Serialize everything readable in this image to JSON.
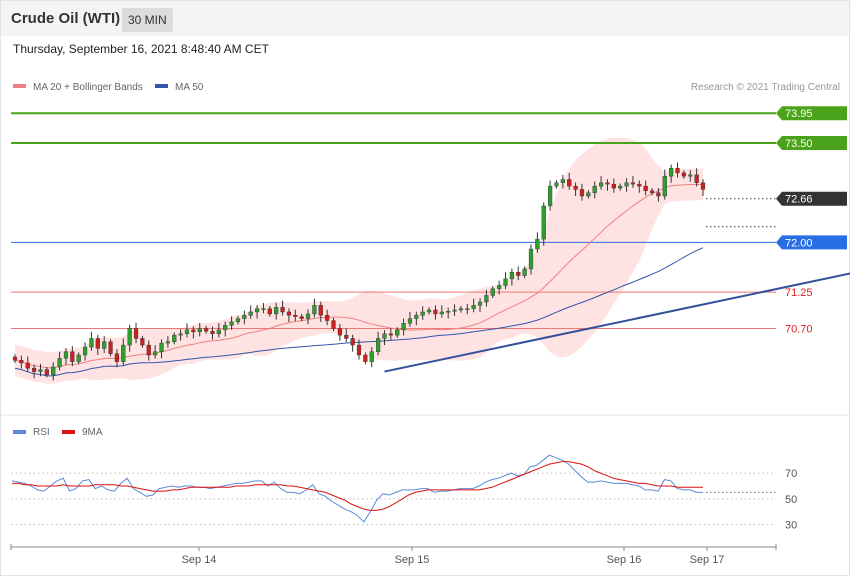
{
  "header": {
    "title": "Crude Oil (WTI)",
    "interval": "30 MIN"
  },
  "timestamp": "Thursday, September 16, 2021 8:48:40 AM CET",
  "copyright": "Research © 2021 Trading Central",
  "colors": {
    "up": "#2e9e2e",
    "down": "#cc1f1f",
    "ma20": "#f08080",
    "bands": "#ffdede",
    "ma50": "#3355aa",
    "resistance": "#4aa31a",
    "current": "#333333",
    "pivot": "#2a6ee6",
    "support": "#ee7777",
    "trend": "#33509a",
    "rsi": "#5b8bd8",
    "rsi_ma": "#dd1111",
    "grid": "#bbbbbb"
  },
  "chart_data": [
    {
      "type": "candlestick",
      "title": "Crude Oil (WTI)",
      "legend": [
        {
          "name": "MA 20 + Bollinger Bands",
          "color": "#f08080"
        },
        {
          "name": "MA 50",
          "color": "#3355aa"
        }
      ],
      "legend_position": "top-left",
      "ylim": [
        69.5,
        74.15
      ],
      "x_ticks": [
        "Sep 14",
        "Sep 15",
        "Sep 16",
        "Sep 17"
      ],
      "levels": [
        {
          "label": "73.95",
          "value": 73.95,
          "kind": "resistance"
        },
        {
          "label": "73.50",
          "value": 73.5,
          "kind": "resistance"
        },
        {
          "label": "72.66",
          "value": 72.66,
          "kind": "current"
        },
        {
          "label": "72.00",
          "value": 72.0,
          "kind": "pivot"
        },
        {
          "label": "71.25",
          "value": 71.25,
          "kind": "support"
        },
        {
          "label": "70.70",
          "value": 70.7,
          "kind": "support"
        }
      ],
      "trendline": {
        "from": [
          58,
          70.05
        ],
        "to": [
          174,
          72.4
        ]
      },
      "projection_arrow": {
        "from": [
          178,
          72.66
        ],
        "to": [
          194,
          73.95
        ]
      },
      "close": [
        70.22,
        70.18,
        70.1,
        70.05,
        70.08,
        70.0,
        70.12,
        70.25,
        70.35,
        70.2,
        70.3,
        70.42,
        70.55,
        70.4,
        70.5,
        70.32,
        70.2,
        70.45,
        70.7,
        70.55,
        70.45,
        70.3,
        70.35,
        70.48,
        70.5,
        70.6,
        70.62,
        70.68,
        70.65,
        70.7,
        70.66,
        70.62,
        70.68,
        70.75,
        70.8,
        70.85,
        70.9,
        70.95,
        71.0,
        71.0,
        70.92,
        71.02,
        70.95,
        70.9,
        70.88,
        70.85,
        70.92,
        71.05,
        70.9,
        70.82,
        70.7,
        70.6,
        70.55,
        70.45,
        70.3,
        70.2,
        70.35,
        70.55,
        70.62,
        70.6,
        70.68,
        70.78,
        70.85,
        70.9,
        70.95,
        70.98,
        70.92,
        70.95,
        70.96,
        70.98,
        71.0,
        71.0,
        71.05,
        71.1,
        71.2,
        71.3,
        71.35,
        71.45,
        71.55,
        71.5,
        71.6,
        71.9,
        72.05,
        72.55,
        72.85,
        72.9,
        72.95,
        72.85,
        72.8,
        72.7,
        72.75,
        72.85,
        72.9,
        72.88,
        72.82,
        72.85,
        72.9,
        72.88,
        72.85,
        72.78,
        72.75,
        72.7,
        73.0,
        73.12,
        73.05,
        73.0,
        73.02,
        72.9,
        72.8
      ],
      "rsi": {
        "legend": [
          {
            "name": "RSI",
            "color": "#5b8bd8"
          },
          {
            "name": "9MA",
            "color": "#dd1111"
          }
        ],
        "levels": [
          70,
          50,
          30
        ],
        "ylim": [
          18,
          88
        ],
        "values": [
          64,
          63,
          62,
          60,
          57,
          56,
          60,
          64,
          66,
          56,
          58,
          64,
          65,
          58,
          60,
          57,
          56,
          62,
          66,
          58,
          55,
          52,
          53,
          58,
          59,
          60,
          59,
          60,
          60,
          59,
          59,
          58,
          59,
          60,
          61,
          62,
          62,
          63,
          64,
          64,
          60,
          63,
          58,
          55,
          55,
          54,
          57,
          61,
          54,
          52,
          48,
          45,
          42,
          40,
          37,
          32,
          40,
          49,
          54,
          53,
          55,
          57,
          57,
          57,
          58,
          58,
          55,
          56,
          56,
          57,
          58,
          58,
          58,
          60,
          63,
          65,
          66,
          68,
          70,
          68,
          69,
          75,
          76,
          80,
          84,
          82,
          80,
          77,
          72,
          67,
          63,
          63,
          64,
          63,
          62,
          62,
          62,
          61,
          60,
          57,
          57,
          56,
          65,
          64,
          58,
          57,
          57,
          55,
          55
        ],
        "ma9": [
          62,
          62,
          61,
          61,
          60,
          60,
          60,
          60,
          61,
          60,
          60,
          60,
          60,
          61,
          61,
          61,
          61,
          60,
          60,
          59,
          58,
          57,
          56,
          56,
          56,
          57,
          57,
          58,
          59,
          59,
          59,
          59,
          59,
          59,
          59,
          60,
          60,
          60,
          61,
          61,
          61,
          61,
          61,
          60,
          60,
          59,
          58,
          57,
          56,
          55,
          53,
          51,
          49,
          46,
          44,
          42,
          41,
          41,
          42,
          44,
          47,
          50,
          53,
          55,
          56,
          57,
          57,
          57,
          57,
          57,
          57,
          57,
          57,
          57,
          58,
          59,
          61,
          63,
          65,
          67,
          69,
          71,
          73,
          75,
          77,
          78,
          79,
          79,
          78,
          77,
          75,
          72,
          70,
          68,
          66,
          65,
          64,
          63,
          62,
          62,
          61,
          60,
          60,
          60,
          59,
          59,
          59,
          59,
          59
        ]
      }
    }
  ]
}
